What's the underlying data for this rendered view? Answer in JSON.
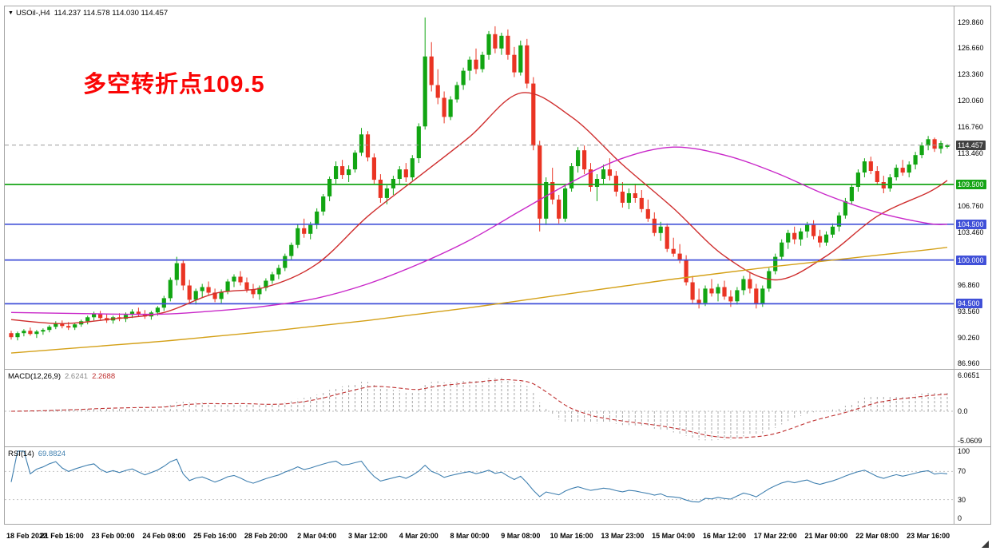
{
  "window": {
    "marker": "▼",
    "symbol_period": "USOil-,H4",
    "ohlc_line": "114.237 114.578 114.030 114.457"
  },
  "annotation": {
    "text": "多空转折点109.5",
    "color": "#fa0505"
  },
  "price_axis": {
    "labels": [
      {
        "text": "129.860",
        "price": 129.86
      },
      {
        "text": "126.660",
        "price": 126.66
      },
      {
        "text": "123.360",
        "price": 123.36
      },
      {
        "text": "120.060",
        "price": 120.06
      },
      {
        "text": "116.760",
        "price": 116.76
      },
      {
        "text": "113.460",
        "price": 113.46
      },
      {
        "text": "106.760",
        "price": 106.76
      },
      {
        "text": "103.460",
        "price": 103.46
      },
      {
        "text": "96.860",
        "price": 96.86
      },
      {
        "text": "93.560",
        "price": 93.56
      },
      {
        "text": "90.260",
        "price": 90.26
      },
      {
        "text": "86.960",
        "price": 86.96
      }
    ],
    "current_badge": {
      "text": "114.457",
      "price": 114.457,
      "bg": "#404040",
      "fg": "#ffffff"
    }
  },
  "macd_panel": {
    "label": "MACD(12,26,9)",
    "value_main": "2.6241",
    "value_signal": "2.2688",
    "axis_max": {
      "text": "6.0651",
      "value": 6.0651
    },
    "axis_zero": {
      "text": "0.0",
      "value": 0
    },
    "axis_min": {
      "text": "-5.0609",
      "value": -5.0609
    },
    "histogram_color": "#a8a8a8",
    "signal_color": "#bf3030"
  },
  "rsi_panel": {
    "label": "RSI(14)",
    "value": "69.8824",
    "axis": [
      {
        "text": "100",
        "value": 100
      },
      {
        "text": "70",
        "value": 70
      },
      {
        "text": "30",
        "value": 30
      },
      {
        "text": "0",
        "value": 0
      }
    ],
    "levels": [
      70,
      30
    ],
    "line_color": "#4080b0"
  },
  "chart_data": {
    "type": "candlestick",
    "symbol": "USOil",
    "timeframe": "H4",
    "title": "USOil-,H4",
    "ylim": [
      86.3,
      131.9
    ],
    "current_price": 114.457,
    "colors": {
      "up": "#11a512",
      "down": "#ea3423"
    },
    "levels": [
      {
        "price": 109.5,
        "label": "109.500",
        "color": "#16a516"
      },
      {
        "price": 104.5,
        "label": "104.500",
        "color": "#4050d8"
      },
      {
        "price": 100.0,
        "label": "100.000",
        "color": "#4050d8"
      },
      {
        "price": 94.5,
        "label": "94.500",
        "color": "#4050d8"
      }
    ],
    "ohlc": [
      [
        90.8,
        91.1,
        90.0,
        90.3
      ],
      [
        90.3,
        91.0,
        89.9,
        90.8
      ],
      [
        90.8,
        91.3,
        90.4,
        91.1
      ],
      [
        91.1,
        91.5,
        90.5,
        90.7
      ],
      [
        90.7,
        91.2,
        90.2,
        91.0
      ],
      [
        91.0,
        91.4,
        90.6,
        91.2
      ],
      [
        91.2,
        91.8,
        90.9,
        91.6
      ],
      [
        91.6,
        92.3,
        91.3,
        92.0
      ],
      [
        92.0,
        92.4,
        91.4,
        91.7
      ],
      [
        91.7,
        92.2,
        91.2,
        91.5
      ],
      [
        91.5,
        92.1,
        91.2,
        91.9
      ],
      [
        91.9,
        92.5,
        91.6,
        92.3
      ],
      [
        92.3,
        93.0,
        91.9,
        92.8
      ],
      [
        92.8,
        93.5,
        92.4,
        93.2
      ],
      [
        93.2,
        93.6,
        92.5,
        92.7
      ],
      [
        92.7,
        93.2,
        92.1,
        92.4
      ],
      [
        92.4,
        93.0,
        92.0,
        92.8
      ],
      [
        92.8,
        93.3,
        92.3,
        92.6
      ],
      [
        92.6,
        93.4,
        92.2,
        93.1
      ],
      [
        93.1,
        93.8,
        92.7,
        93.5
      ],
      [
        93.5,
        94.0,
        92.9,
        93.2
      ],
      [
        93.2,
        93.7,
        92.6,
        92.9
      ],
      [
        92.9,
        93.6,
        92.5,
        93.4
      ],
      [
        93.4,
        94.2,
        93.0,
        94.0
      ],
      [
        94.0,
        95.5,
        93.6,
        95.2
      ],
      [
        95.2,
        97.8,
        94.8,
        97.5
      ],
      [
        97.5,
        100.4,
        96.8,
        99.6
      ],
      [
        99.6,
        100.0,
        96.2,
        96.8
      ],
      [
        96.8,
        97.5,
        94.6,
        95.0
      ],
      [
        95.0,
        96.4,
        94.4,
        96.1
      ],
      [
        96.1,
        97.0,
        95.3,
        96.6
      ],
      [
        96.6,
        97.3,
        95.6,
        95.9
      ],
      [
        95.9,
        96.4,
        94.7,
        95.1
      ],
      [
        95.1,
        96.3,
        94.6,
        96.0
      ],
      [
        96.0,
        97.6,
        95.7,
        97.3
      ],
      [
        97.3,
        98.2,
        96.6,
        97.9
      ],
      [
        97.9,
        98.6,
        96.8,
        97.2
      ],
      [
        97.2,
        97.8,
        95.9,
        96.3
      ],
      [
        96.3,
        97.0,
        95.2,
        95.7
      ],
      [
        95.7,
        96.8,
        95.0,
        96.5
      ],
      [
        96.5,
        97.7,
        96.1,
        97.4
      ],
      [
        97.4,
        98.5,
        97.0,
        98.2
      ],
      [
        98.2,
        99.4,
        97.6,
        99.0
      ],
      [
        99.0,
        100.8,
        98.6,
        100.5
      ],
      [
        100.5,
        102.2,
        100.0,
        101.9
      ],
      [
        101.9,
        104.5,
        101.5,
        104.0
      ],
      [
        104.0,
        105.2,
        102.8,
        103.3
      ],
      [
        103.3,
        104.8,
        102.6,
        104.4
      ],
      [
        104.4,
        106.5,
        103.9,
        106.1
      ],
      [
        106.1,
        108.3,
        105.6,
        108.0
      ],
      [
        108.0,
        110.5,
        107.4,
        110.2
      ],
      [
        110.2,
        112.4,
        109.6,
        111.8
      ],
      [
        111.8,
        112.6,
        110.2,
        110.7
      ],
      [
        110.7,
        111.9,
        109.8,
        111.4
      ],
      [
        111.4,
        113.8,
        111.0,
        113.5
      ],
      [
        113.5,
        116.6,
        113.1,
        115.8
      ],
      [
        115.8,
        116.2,
        112.4,
        112.9
      ],
      [
        112.9,
        113.4,
        109.6,
        110.1
      ],
      [
        110.1,
        110.8,
        107.2,
        107.8
      ],
      [
        107.8,
        109.4,
        107.0,
        109.0
      ],
      [
        109.0,
        110.6,
        108.2,
        110.2
      ],
      [
        110.2,
        111.8,
        109.5,
        111.4
      ],
      [
        111.4,
        112.2,
        109.8,
        110.4
      ],
      [
        110.4,
        113.2,
        110.0,
        112.8
      ],
      [
        112.8,
        117.2,
        112.2,
        116.8
      ],
      [
        116.8,
        130.5,
        116.4,
        125.6
      ],
      [
        125.6,
        127.4,
        121.2,
        122.0
      ],
      [
        122.0,
        124.0,
        119.6,
        120.4
      ],
      [
        120.4,
        121.2,
        117.2,
        118.0
      ],
      [
        118.0,
        120.6,
        117.6,
        120.2
      ],
      [
        120.2,
        122.4,
        119.8,
        122.0
      ],
      [
        122.0,
        124.2,
        121.4,
        123.8
      ],
      [
        123.8,
        125.6,
        122.6,
        125.2
      ],
      [
        125.2,
        126.6,
        123.4,
        124.0
      ],
      [
        124.0,
        126.2,
        123.6,
        125.8
      ],
      [
        125.8,
        128.8,
        125.2,
        128.4
      ],
      [
        128.4,
        129.4,
        126.0,
        126.6
      ],
      [
        126.6,
        128.6,
        125.8,
        128.2
      ],
      [
        128.2,
        129.0,
        125.2,
        125.8
      ],
      [
        125.8,
        126.8,
        123.0,
        123.6
      ],
      [
        123.6,
        127.6,
        123.2,
        127.0
      ],
      [
        127.0,
        127.8,
        121.6,
        122.2
      ],
      [
        122.2,
        123.0,
        113.8,
        114.4
      ],
      [
        114.4,
        115.0,
        103.6,
        105.2
      ],
      [
        105.2,
        110.4,
        104.4,
        109.8
      ],
      [
        109.8,
        111.6,
        107.0,
        107.6
      ],
      [
        107.6,
        108.2,
        104.6,
        105.2
      ],
      [
        105.2,
        109.6,
        104.8,
        109.0
      ],
      [
        109.0,
        112.2,
        108.6,
        111.8
      ],
      [
        111.8,
        114.2,
        111.0,
        113.8
      ],
      [
        113.8,
        114.4,
        110.8,
        111.4
      ],
      [
        111.4,
        112.2,
        108.6,
        109.2
      ],
      [
        109.2,
        110.8,
        107.4,
        110.2
      ],
      [
        110.2,
        112.0,
        109.6,
        111.4
      ],
      [
        111.4,
        112.8,
        110.0,
        110.6
      ],
      [
        110.6,
        111.2,
        108.0,
        108.6
      ],
      [
        108.6,
        109.8,
        106.6,
        107.2
      ],
      [
        107.2,
        109.0,
        106.4,
        108.4
      ],
      [
        108.4,
        109.6,
        107.2,
        107.8
      ],
      [
        107.8,
        108.8,
        106.0,
        106.4
      ],
      [
        106.4,
        107.6,
        104.8,
        105.2
      ],
      [
        105.2,
        106.0,
        103.0,
        103.4
      ],
      [
        103.4,
        104.8,
        102.4,
        104.2
      ],
      [
        104.2,
        104.6,
        101.0,
        101.4
      ],
      [
        101.4,
        102.8,
        100.4,
        100.8
      ],
      [
        100.8,
        102.0,
        99.6,
        100.0
      ],
      [
        100.0,
        100.6,
        96.8,
        97.2
      ],
      [
        97.2,
        98.0,
        94.6,
        95.0
      ],
      [
        95.0,
        96.4,
        93.9,
        94.6
      ],
      [
        94.6,
        96.8,
        94.2,
        96.4
      ],
      [
        96.4,
        97.6,
        95.4,
        95.8
      ],
      [
        95.8,
        97.0,
        94.8,
        96.6
      ],
      [
        96.6,
        97.4,
        95.0,
        95.4
      ],
      [
        95.4,
        96.2,
        94.1,
        94.8
      ],
      [
        94.8,
        96.6,
        94.4,
        96.2
      ],
      [
        96.2,
        98.0,
        95.6,
        97.6
      ],
      [
        97.6,
        98.4,
        95.8,
        96.4
      ],
      [
        96.4,
        97.0,
        93.9,
        94.5
      ],
      [
        94.5,
        96.8,
        94.1,
        96.4
      ],
      [
        96.4,
        99.0,
        96.0,
        98.6
      ],
      [
        98.6,
        100.8,
        98.2,
        100.4
      ],
      [
        100.4,
        102.6,
        100.0,
        102.2
      ],
      [
        102.2,
        103.8,
        101.4,
        103.4
      ],
      [
        103.4,
        104.2,
        102.0,
        102.6
      ],
      [
        102.6,
        104.0,
        101.8,
        103.6
      ],
      [
        103.6,
        104.8,
        102.8,
        104.4
      ],
      [
        104.4,
        105.0,
        102.6,
        103.0
      ],
      [
        103.0,
        103.8,
        101.6,
        102.2
      ],
      [
        102.2,
        103.6,
        101.8,
        103.2
      ],
      [
        103.2,
        104.6,
        102.8,
        104.2
      ],
      [
        104.2,
        106.0,
        103.6,
        105.6
      ],
      [
        105.6,
        107.8,
        105.2,
        107.4
      ],
      [
        107.4,
        109.6,
        107.0,
        109.2
      ],
      [
        109.2,
        111.4,
        108.6,
        111.0
      ],
      [
        111.0,
        112.8,
        110.4,
        112.4
      ],
      [
        112.4,
        113.0,
        110.8,
        111.2
      ],
      [
        111.2,
        111.8,
        109.4,
        109.8
      ],
      [
        109.8,
        110.6,
        108.4,
        109.0
      ],
      [
        109.0,
        110.8,
        108.6,
        110.4
      ],
      [
        110.4,
        112.0,
        110.0,
        111.6
      ],
      [
        111.6,
        112.6,
        110.6,
        111.0
      ],
      [
        111.0,
        112.4,
        110.4,
        112.0
      ],
      [
        112.0,
        113.6,
        111.4,
        113.2
      ],
      [
        113.2,
        114.8,
        112.8,
        114.4
      ],
      [
        114.4,
        115.6,
        113.8,
        115.2
      ],
      [
        115.2,
        115.4,
        113.6,
        114.0
      ],
      [
        114.0,
        115.0,
        113.4,
        114.7
      ],
      [
        114.237,
        114.578,
        114.03,
        114.457
      ]
    ],
    "moving_averages": [
      {
        "name": "ma-fast",
        "color": "#cf2e2e",
        "at": [
          0,
          8,
          16,
          24,
          32,
          40,
          48,
          56,
          64,
          72,
          80,
          88,
          96,
          104,
          112,
          120,
          128,
          136,
          144,
          147
        ],
        "values": [
          92.5,
          92.0,
          92.6,
          93.4,
          95.8,
          96.6,
          99.5,
          105.5,
          110.5,
          115.5,
          121.0,
          118.0,
          112.0,
          106.5,
          100.5,
          97.5,
          100.5,
          105.5,
          108.5,
          110.0
        ]
      },
      {
        "name": "ma-mid",
        "color": "#c928c9",
        "at": [
          0,
          8,
          16,
          24,
          32,
          40,
          48,
          56,
          64,
          72,
          80,
          88,
          96,
          104,
          112,
          120,
          128,
          136,
          144,
          147
        ],
        "values": [
          93.4,
          93.3,
          93.2,
          93.2,
          93.6,
          94.2,
          95.2,
          97.0,
          99.5,
          102.5,
          106.2,
          109.8,
          112.8,
          114.2,
          113.2,
          111.0,
          108.2,
          106.0,
          104.6,
          104.5
        ]
      },
      {
        "name": "ma-slow",
        "color": "#d4a017",
        "at": [
          0,
          8,
          16,
          24,
          32,
          40,
          48,
          56,
          64,
          72,
          80,
          88,
          96,
          104,
          112,
          120,
          128,
          136,
          144,
          147
        ],
        "values": [
          88.3,
          88.8,
          89.3,
          89.8,
          90.4,
          91.0,
          91.7,
          92.4,
          93.2,
          94.0,
          94.9,
          95.8,
          96.7,
          97.6,
          98.4,
          99.2,
          99.9,
          100.6,
          101.3,
          101.6
        ]
      }
    ],
    "time_labels": [
      {
        "text": "18 Feb 2022",
        "bar": 0
      },
      {
        "text": "21 Feb 16:00",
        "bar": 8
      },
      {
        "text": "23 Feb 00:00",
        "bar": 16
      },
      {
        "text": "24 Feb 08:00",
        "bar": 24
      },
      {
        "text": "25 Feb 16:00",
        "bar": 32
      },
      {
        "text": "28 Feb 20:00",
        "bar": 40
      },
      {
        "text": "2 Mar 04:00",
        "bar": 48
      },
      {
        "text": "3 Mar 12:00",
        "bar": 56
      },
      {
        "text": "4 Mar 20:00",
        "bar": 64
      },
      {
        "text": "8 Mar 00:00",
        "bar": 72
      },
      {
        "text": "9 Mar 08:00",
        "bar": 80
      },
      {
        "text": "10 Mar 16:00",
        "bar": 88
      },
      {
        "text": "13 Mar 23:00",
        "bar": 96
      },
      {
        "text": "15 Mar 04:00",
        "bar": 104
      },
      {
        "text": "16 Mar 12:00",
        "bar": 112
      },
      {
        "text": "17 Mar 22:00",
        "bar": 120
      },
      {
        "text": "21 Mar 00:00",
        "bar": 128
      },
      {
        "text": "22 Mar 08:00",
        "bar": 136
      },
      {
        "text": "23 Mar 16:00",
        "bar": 144
      }
    ]
  }
}
